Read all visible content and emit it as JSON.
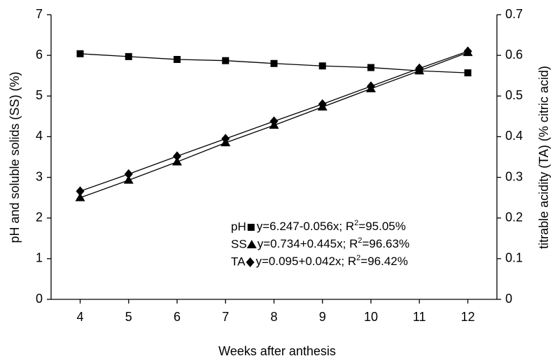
{
  "chart_data": {
    "type": "line",
    "x_label": "Weeks after anthesis",
    "y_label": "pH and soluble solids (SS) (%)",
    "y2_label": "titrable acidity (TA) (% citric acid)",
    "x": [
      4,
      5,
      6,
      7,
      8,
      9,
      10,
      11,
      12
    ],
    "xlim": [
      3.4,
      12.6
    ],
    "xticks": [
      4,
      5,
      6,
      7,
      8,
      9,
      10,
      11,
      12
    ],
    "ylim": [
      0,
      7
    ],
    "yticks": [
      0,
      1,
      2,
      3,
      4,
      5,
      6,
      7
    ],
    "y2lim": [
      0,
      0.7
    ],
    "y2ticks": [
      0,
      0.1,
      0.2,
      0.3,
      0.4,
      0.5,
      0.6,
      0.7
    ],
    "series": [
      {
        "name": "pH",
        "color": "#000000",
        "marker": "square",
        "values": [
          6.04,
          5.97,
          5.9,
          5.87,
          5.8,
          5.74,
          5.7,
          5.62,
          5.57
        ],
        "equation": "y=6.247-0.056x; R",
        "equation_sup": "2",
        "equation_end": "=95.05%"
      },
      {
        "name": "SS",
        "color": "#000000",
        "marker": "triangle",
        "values": [
          2.5,
          2.93,
          3.38,
          3.85,
          4.28,
          4.73,
          5.18,
          5.62,
          6.07
        ],
        "equation": "y=0.734+0.445x; R",
        "equation_sup": "2",
        "equation_end": "=96.63%"
      },
      {
        "name": "TA",
        "color": "#000000",
        "marker": "diamond",
        "axis": "y2",
        "values": [
          0.266,
          0.308,
          0.352,
          0.395,
          0.438,
          0.48,
          0.524,
          0.568,
          0.61
        ],
        "equation": "y=0.095+0.042x; R",
        "equation_sup": "2",
        "equation_end": "=96.42%"
      }
    ]
  }
}
